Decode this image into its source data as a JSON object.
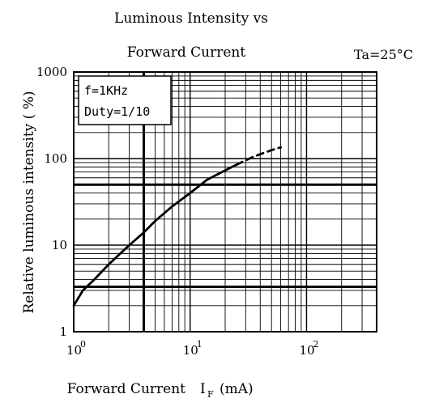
{
  "chart_data": {
    "type": "line",
    "title_line1": "Luminous Intensity vs",
    "title_line2": "Forward Current",
    "condition": "Ta=25°C",
    "xlabel": "Forward Current",
    "xlabel_symbol": "I",
    "xlabel_subscript": "F",
    "xlabel_unit": "(mA)",
    "ylabel": "Relative luminous intensity ( %)",
    "x_scale": "log",
    "y_scale": "log",
    "xlim": [
      1,
      400
    ],
    "ylim": [
      1,
      1000
    ],
    "grid": true,
    "legend_box": {
      "line1": "f=1KHz",
      "line2": "Duty=1/10",
      "placement": "top-left"
    },
    "x_ticks": [
      {
        "value": 1,
        "base": "10",
        "exp": "0"
      },
      {
        "value": 10,
        "base": "10",
        "exp": "1"
      },
      {
        "value": 100,
        "base": "10",
        "exp": "2"
      }
    ],
    "y_ticks": [
      {
        "value": 1,
        "label": "1"
      },
      {
        "value": 10,
        "label": "10"
      },
      {
        "value": 100,
        "label": "100"
      },
      {
        "value": 1000,
        "label": "1000"
      }
    ],
    "emphasized_gridlines": {
      "x": [
        4
      ],
      "y": [
        3.3,
        50
      ]
    },
    "series": [
      {
        "style": "solid",
        "x": [
          1.0,
          1.2,
          1.5,
          2.0,
          3.0,
          4.0,
          5.0,
          7.0,
          10.0,
          14.0,
          20.0,
          25.0
        ],
        "y": [
          2.0,
          3.0,
          4.0,
          6.0,
          10.0,
          14.0,
          19.0,
          28.0,
          40.0,
          57.0,
          73.0,
          85.0
        ]
      },
      {
        "style": "dashed",
        "x": [
          25.0,
          35.0,
          50.0,
          60.0
        ],
        "y": [
          85.0,
          105.0,
          125.0,
          135.0
        ]
      }
    ]
  }
}
